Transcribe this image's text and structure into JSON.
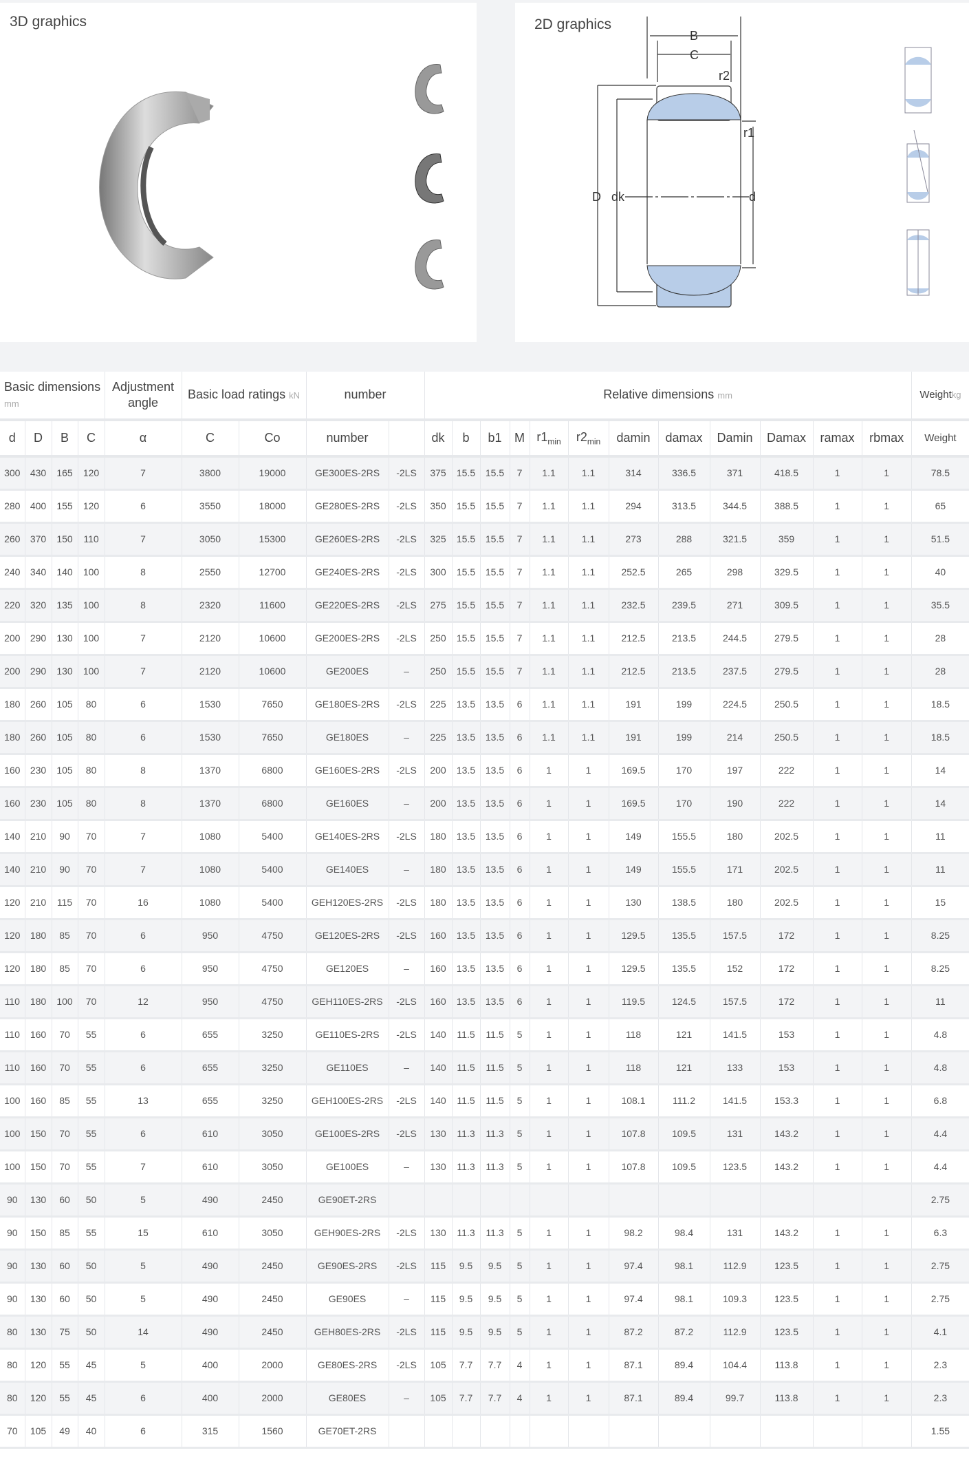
{
  "graphics": {
    "three_d_title": "3D graphics",
    "two_d_title": "2D graphics",
    "diagram_labels": {
      "B": "B",
      "C": "C",
      "r2": "r2",
      "r1": "r1",
      "D": "D",
      "dk": "dk",
      "d": "d"
    }
  },
  "table": {
    "group_headers": {
      "basic_dimensions": "Basic dimensions",
      "basic_dimensions_unit": "mm",
      "adjustment_angle": "Adjustment angle",
      "load_ratings": "Basic load ratings",
      "load_ratings_unit": "kN",
      "number": "number",
      "relative_dimensions": "Relative dimensions",
      "relative_dimensions_unit": "mm",
      "weight": "Weight",
      "weight_unit": "kg"
    },
    "columns": [
      "d",
      "D",
      "B",
      "C",
      "α",
      "C",
      "Co",
      "number",
      "",
      "dk",
      "b",
      "b1",
      "M",
      "r1min",
      "r2min",
      "damin",
      "damax",
      "Damin",
      "Damax",
      "ramax",
      "rbmax",
      "Weight"
    ],
    "rows": [
      [
        "300",
        "430",
        "165",
        "120",
        "7",
        "3800",
        "19000",
        "GE300ES-2RS",
        "-2LS",
        "375",
        "15.5",
        "15.5",
        "7",
        "1.1",
        "1.1",
        "314",
        "336.5",
        "371",
        "418.5",
        "1",
        "1",
        "78.5"
      ],
      [
        "280",
        "400",
        "155",
        "120",
        "6",
        "3550",
        "18000",
        "GE280ES-2RS",
        "-2LS",
        "350",
        "15.5",
        "15.5",
        "7",
        "1.1",
        "1.1",
        "294",
        "313.5",
        "344.5",
        "388.5",
        "1",
        "1",
        "65"
      ],
      [
        "260",
        "370",
        "150",
        "110",
        "7",
        "3050",
        "15300",
        "GE260ES-2RS",
        "-2LS",
        "325",
        "15.5",
        "15.5",
        "7",
        "1.1",
        "1.1",
        "273",
        "288",
        "321.5",
        "359",
        "1",
        "1",
        "51.5"
      ],
      [
        "240",
        "340",
        "140",
        "100",
        "8",
        "2550",
        "12700",
        "GE240ES-2RS",
        "-2LS",
        "300",
        "15.5",
        "15.5",
        "7",
        "1.1",
        "1.1",
        "252.5",
        "265",
        "298",
        "329.5",
        "1",
        "1",
        "40"
      ],
      [
        "220",
        "320",
        "135",
        "100",
        "8",
        "2320",
        "11600",
        "GE220ES-2RS",
        "-2LS",
        "275",
        "15.5",
        "15.5",
        "7",
        "1.1",
        "1.1",
        "232.5",
        "239.5",
        "271",
        "309.5",
        "1",
        "1",
        "35.5"
      ],
      [
        "200",
        "290",
        "130",
        "100",
        "7",
        "2120",
        "10600",
        "GE200ES-2RS",
        "-2LS",
        "250",
        "15.5",
        "15.5",
        "7",
        "1.1",
        "1.1",
        "212.5",
        "213.5",
        "244.5",
        "279.5",
        "1",
        "1",
        "28"
      ],
      [
        "200",
        "290",
        "130",
        "100",
        "7",
        "2120",
        "10600",
        "GE200ES",
        "–",
        "250",
        "15.5",
        "15.5",
        "7",
        "1.1",
        "1.1",
        "212.5",
        "213.5",
        "237.5",
        "279.5",
        "1",
        "1",
        "28"
      ],
      [
        "180",
        "260",
        "105",
        "80",
        "6",
        "1530",
        "7650",
        "GE180ES-2RS",
        "-2LS",
        "225",
        "13.5",
        "13.5",
        "6",
        "1.1",
        "1.1",
        "191",
        "199",
        "224.5",
        "250.5",
        "1",
        "1",
        "18.5"
      ],
      [
        "180",
        "260",
        "105",
        "80",
        "6",
        "1530",
        "7650",
        "GE180ES",
        "–",
        "225",
        "13.5",
        "13.5",
        "6",
        "1.1",
        "1.1",
        "191",
        "199",
        "214",
        "250.5",
        "1",
        "1",
        "18.5"
      ],
      [
        "160",
        "230",
        "105",
        "80",
        "8",
        "1370",
        "6800",
        "GE160ES-2RS",
        "-2LS",
        "200",
        "13.5",
        "13.5",
        "6",
        "1",
        "1",
        "169.5",
        "170",
        "197",
        "222",
        "1",
        "1",
        "14"
      ],
      [
        "160",
        "230",
        "105",
        "80",
        "8",
        "1370",
        "6800",
        "GE160ES",
        "–",
        "200",
        "13.5",
        "13.5",
        "6",
        "1",
        "1",
        "169.5",
        "170",
        "190",
        "222",
        "1",
        "1",
        "14"
      ],
      [
        "140",
        "210",
        "90",
        "70",
        "7",
        "1080",
        "5400",
        "GE140ES-2RS",
        "-2LS",
        "180",
        "13.5",
        "13.5",
        "6",
        "1",
        "1",
        "149",
        "155.5",
        "180",
        "202.5",
        "1",
        "1",
        "11"
      ],
      [
        "140",
        "210",
        "90",
        "70",
        "7",
        "1080",
        "5400",
        "GE140ES",
        "–",
        "180",
        "13.5",
        "13.5",
        "6",
        "1",
        "1",
        "149",
        "155.5",
        "171",
        "202.5",
        "1",
        "1",
        "11"
      ],
      [
        "120",
        "210",
        "115",
        "70",
        "16",
        "1080",
        "5400",
        "GEH120ES-2RS",
        "-2LS",
        "180",
        "13.5",
        "13.5",
        "6",
        "1",
        "1",
        "130",
        "138.5",
        "180",
        "202.5",
        "1",
        "1",
        "15"
      ],
      [
        "120",
        "180",
        "85",
        "70",
        "6",
        "950",
        "4750",
        "GE120ES-2RS",
        "-2LS",
        "160",
        "13.5",
        "13.5",
        "6",
        "1",
        "1",
        "129.5",
        "135.5",
        "157.5",
        "172",
        "1",
        "1",
        "8.25"
      ],
      [
        "120",
        "180",
        "85",
        "70",
        "6",
        "950",
        "4750",
        "GE120ES",
        "–",
        "160",
        "13.5",
        "13.5",
        "6",
        "1",
        "1",
        "129.5",
        "135.5",
        "152",
        "172",
        "1",
        "1",
        "8.25"
      ],
      [
        "110",
        "180",
        "100",
        "70",
        "12",
        "950",
        "4750",
        "GEH110ES-2RS",
        "-2LS",
        "160",
        "13.5",
        "13.5",
        "6",
        "1",
        "1",
        "119.5",
        "124.5",
        "157.5",
        "172",
        "1",
        "1",
        "11"
      ],
      [
        "110",
        "160",
        "70",
        "55",
        "6",
        "655",
        "3250",
        "GE110ES-2RS",
        "-2LS",
        "140",
        "11.5",
        "11.5",
        "5",
        "1",
        "1",
        "118",
        "121",
        "141.5",
        "153",
        "1",
        "1",
        "4.8"
      ],
      [
        "110",
        "160",
        "70",
        "55",
        "6",
        "655",
        "3250",
        "GE110ES",
        "–",
        "140",
        "11.5",
        "11.5",
        "5",
        "1",
        "1",
        "118",
        "121",
        "133",
        "153",
        "1",
        "1",
        "4.8"
      ],
      [
        "100",
        "160",
        "85",
        "55",
        "13",
        "655",
        "3250",
        "GEH100ES-2RS",
        "-2LS",
        "140",
        "11.5",
        "11.5",
        "5",
        "1",
        "1",
        "108.1",
        "111.2",
        "141.5",
        "153.3",
        "1",
        "1",
        "6.8"
      ],
      [
        "100",
        "150",
        "70",
        "55",
        "6",
        "610",
        "3050",
        "GE100ES-2RS",
        "-2LS",
        "130",
        "11.3",
        "11.3",
        "5",
        "1",
        "1",
        "107.8",
        "109.5",
        "131",
        "143.2",
        "1",
        "1",
        "4.4"
      ],
      [
        "100",
        "150",
        "70",
        "55",
        "7",
        "610",
        "3050",
        "GE100ES",
        "–",
        "130",
        "11.3",
        "11.3",
        "5",
        "1",
        "1",
        "107.8",
        "109.5",
        "123.5",
        "143.2",
        "1",
        "1",
        "4.4"
      ],
      [
        "90",
        "130",
        "60",
        "50",
        "5",
        "490",
        "2450",
        "GE90ET-2RS",
        "",
        "",
        "",
        "",
        "",
        "",
        "",
        "",
        "",
        "",
        "",
        "",
        "",
        "2.75"
      ],
      [
        "90",
        "150",
        "85",
        "55",
        "15",
        "610",
        "3050",
        "GEH90ES-2RS",
        "-2LS",
        "130",
        "11.3",
        "11.3",
        "5",
        "1",
        "1",
        "98.2",
        "98.4",
        "131",
        "143.2",
        "1",
        "1",
        "6.3"
      ],
      [
        "90",
        "130",
        "60",
        "50",
        "5",
        "490",
        "2450",
        "GE90ES-2RS",
        "-2LS",
        "115",
        "9.5",
        "9.5",
        "5",
        "1",
        "1",
        "97.4",
        "98.1",
        "112.9",
        "123.5",
        "1",
        "1",
        "2.75"
      ],
      [
        "90",
        "130",
        "60",
        "50",
        "5",
        "490",
        "2450",
        "GE90ES",
        "–",
        "115",
        "9.5",
        "9.5",
        "5",
        "1",
        "1",
        "97.4",
        "98.1",
        "109.3",
        "123.5",
        "1",
        "1",
        "2.75"
      ],
      [
        "80",
        "130",
        "75",
        "50",
        "14",
        "490",
        "2450",
        "GEH80ES-2RS",
        "-2LS",
        "115",
        "9.5",
        "9.5",
        "5",
        "1",
        "1",
        "87.2",
        "87.2",
        "112.9",
        "123.5",
        "1",
        "1",
        "4.1"
      ],
      [
        "80",
        "120",
        "55",
        "45",
        "5",
        "400",
        "2000",
        "GE80ES-2RS",
        "-2LS",
        "105",
        "7.7",
        "7.7",
        "4",
        "1",
        "1",
        "87.1",
        "89.4",
        "104.4",
        "113.8",
        "1",
        "1",
        "2.3"
      ],
      [
        "80",
        "120",
        "55",
        "45",
        "6",
        "400",
        "2000",
        "GE80ES",
        "–",
        "105",
        "7.7",
        "7.7",
        "4",
        "1",
        "1",
        "87.1",
        "89.4",
        "99.7",
        "113.8",
        "1",
        "1",
        "2.3"
      ],
      [
        "70",
        "105",
        "49",
        "40",
        "6",
        "315",
        "1560",
        "GE70ET-2RS",
        "",
        "",
        "",
        "",
        "",
        "",
        "",
        "",
        "",
        "",
        "",
        "",
        "",
        "1.55"
      ]
    ]
  },
  "colors": {
    "diagram_fill": "#b8cde8",
    "table_stripe": "#f3f4f6"
  }
}
